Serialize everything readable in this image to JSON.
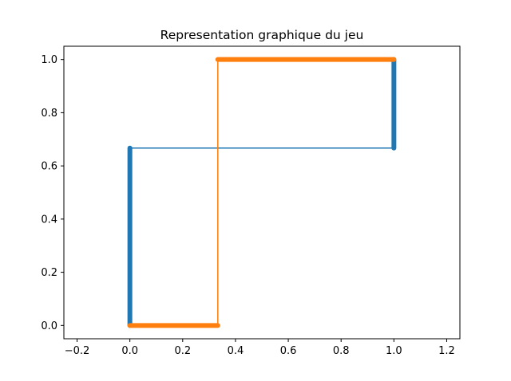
{
  "chart_data": {
    "type": "line",
    "title": "Representation graphique du jeu",
    "xlabel": "",
    "ylabel": "",
    "xlim": [
      -0.25,
      1.25
    ],
    "ylim": [
      -0.05,
      1.05
    ],
    "xticks": [
      -0.2,
      0.0,
      0.2,
      0.4,
      0.6,
      0.8,
      1.0,
      1.2
    ],
    "yticks": [
      0.0,
      0.2,
      0.4,
      0.6,
      0.8,
      1.0
    ],
    "xtick_labels": [
      "−0.2",
      "0.0",
      "0.2",
      "0.4",
      "0.6",
      "0.8",
      "1.0",
      "1.2"
    ],
    "ytick_labels": [
      "0.0",
      "0.2",
      "0.4",
      "0.6",
      "0.8",
      "1.0"
    ],
    "grid": false,
    "series": [
      {
        "color": "#1f77b4",
        "line": [
          [
            0.0,
            0.0
          ],
          [
            0.0,
            0.667
          ],
          [
            1.0,
            0.667
          ],
          [
            1.0,
            1.0
          ]
        ],
        "thick_segments": [
          [
            [
              0.0,
              0.0
            ],
            [
              0.0,
              0.667
            ]
          ],
          [
            [
              1.0,
              0.667
            ],
            [
              1.0,
              1.0
            ]
          ]
        ]
      },
      {
        "color": "#ff7f0e",
        "line": [
          [
            0.0,
            0.0
          ],
          [
            0.333,
            0.0
          ],
          [
            0.333,
            1.0
          ],
          [
            1.0,
            1.0
          ]
        ],
        "thick_segments": [
          [
            [
              0.0,
              0.0
            ],
            [
              0.333,
              0.0
            ]
          ],
          [
            [
              0.333,
              1.0
            ],
            [
              1.0,
              1.0
            ]
          ]
        ]
      }
    ]
  }
}
